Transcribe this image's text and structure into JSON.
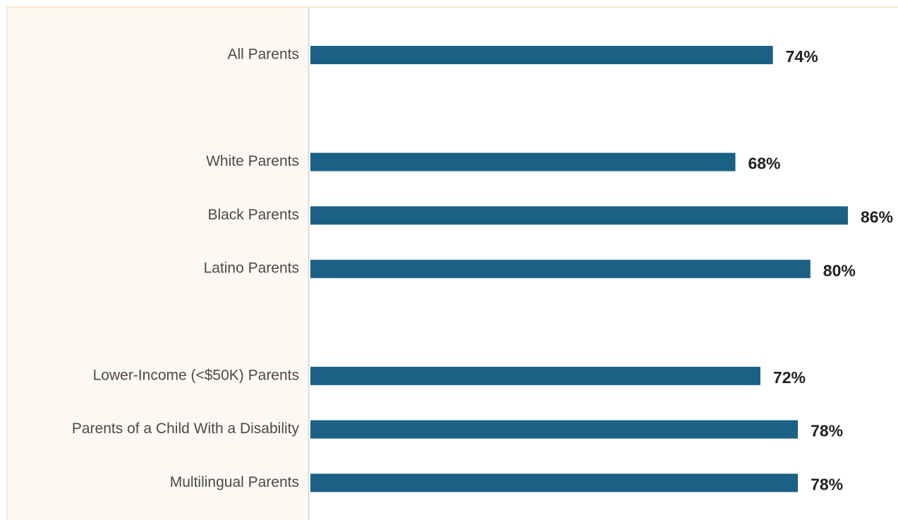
{
  "chart_data": {
    "type": "bar",
    "orientation": "horizontal",
    "categories": [
      "All Parents",
      null,
      "White Parents",
      "Black Parents",
      "Latino Parents",
      null,
      "Lower-Income (<$50K) Parents",
      "Parents of a Child With a Disability",
      "Multilingual Parents"
    ],
    "values": [
      74,
      null,
      68,
      86,
      80,
      null,
      72,
      78,
      78
    ],
    "value_labels": [
      "74%",
      null,
      "68%",
      "86%",
      "80%",
      null,
      "72%",
      "78%",
      "78%"
    ],
    "color": "#1a6185",
    "xlim": [
      0,
      100
    ]
  }
}
